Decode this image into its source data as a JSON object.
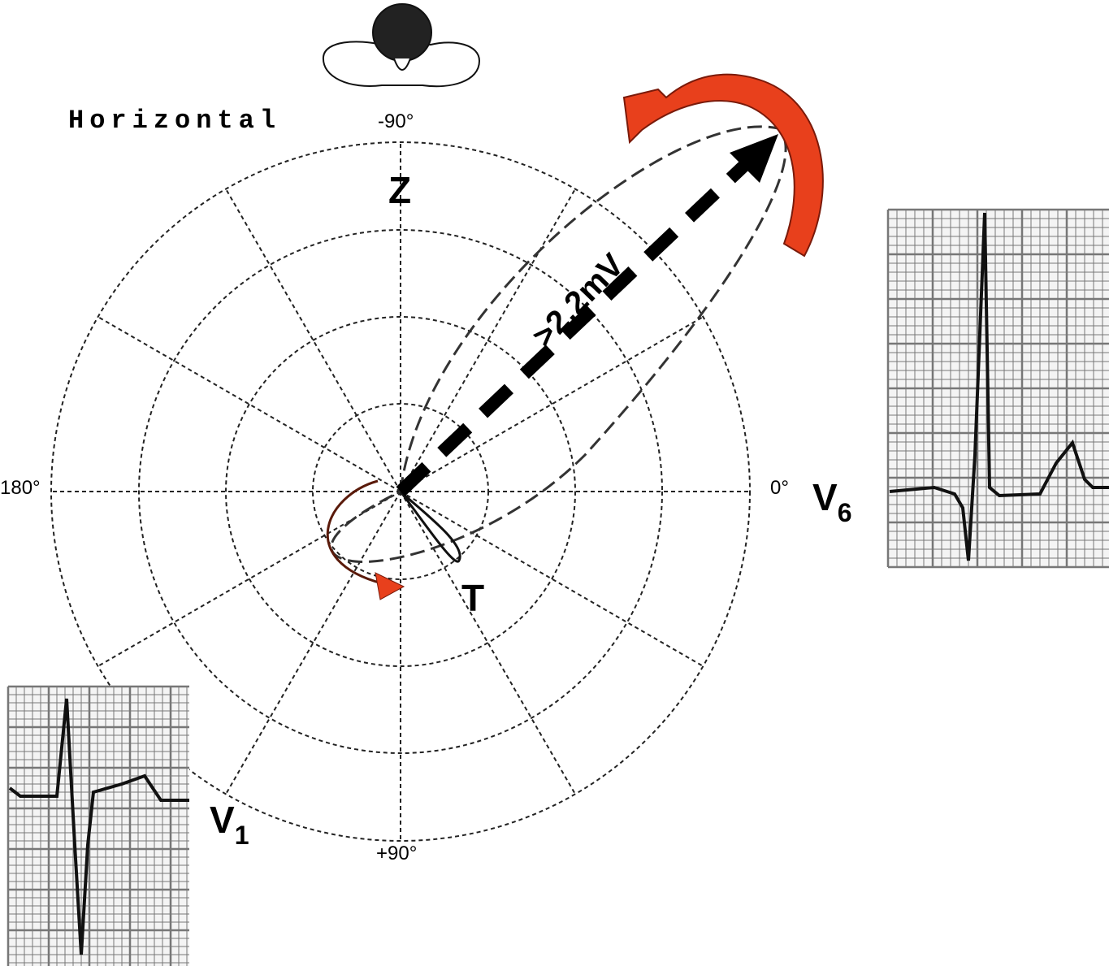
{
  "diagram": {
    "title": "Horizontal",
    "angle_labels": {
      "top": "-90°",
      "left": "180°",
      "right": "0°",
      "bottom": "+90°"
    },
    "axis_label": "Z",
    "magnitude_label": ">2.2mV",
    "t_loop_label": "T",
    "leads": [
      {
        "name": "V",
        "subscript": "6"
      },
      {
        "name": "V",
        "subscript": "1"
      }
    ]
  }
}
